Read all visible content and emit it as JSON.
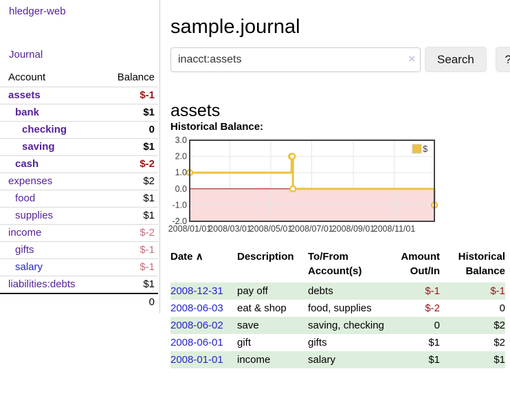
{
  "app": {
    "brand": "hledger-web"
  },
  "sidebar": {
    "journal_link": "Journal",
    "accounts": {
      "header_account": "Account",
      "header_balance": "Balance",
      "rows": [
        {
          "name": "assets",
          "balance": "$-1",
          "level": 1,
          "bold": true,
          "balance_style": "negative"
        },
        {
          "name": "bank",
          "balance": "$1",
          "level": 2,
          "bold": true,
          "balance_style": "normal"
        },
        {
          "name": "checking",
          "balance": "0",
          "level": 3,
          "bold": true,
          "balance_style": "normal"
        },
        {
          "name": "saving",
          "balance": "$1",
          "level": 3,
          "bold": true,
          "balance_style": "normal"
        },
        {
          "name": "cash",
          "balance": "$-2",
          "level": 2,
          "bold": true,
          "balance_style": "negative"
        },
        {
          "name": "expenses",
          "balance": "$2",
          "level": 1,
          "bold": false,
          "balance_style": "normal"
        },
        {
          "name": "food",
          "balance": "$1",
          "level": 2,
          "bold": false,
          "balance_style": "normal"
        },
        {
          "name": "supplies",
          "balance": "$1",
          "level": 2,
          "bold": false,
          "balance_style": "normal"
        },
        {
          "name": "income",
          "balance": "$-2",
          "level": 1,
          "bold": false,
          "balance_style": "negative-soft"
        },
        {
          "name": "gifts",
          "balance": "$-1",
          "level": 2,
          "bold": false,
          "balance_style": "negative-soft"
        },
        {
          "name": "salary",
          "balance": "$-1",
          "level": 2,
          "bold": false,
          "balance_style": "negative-soft",
          "link_style": "blue"
        },
        {
          "name": "liabilities:debts",
          "balance": "$1",
          "level": 1,
          "bold": false,
          "balance_style": "normal"
        }
      ],
      "total": "0"
    }
  },
  "main": {
    "title": "sample.journal",
    "search": {
      "value": "inacct:assets",
      "clear_icon": "×",
      "search_button": "Search",
      "help_button": "?"
    },
    "account_title": "assets",
    "section_label": "Historical Balance:",
    "register": {
      "headers": {
        "date": "Date",
        "sort_icon": "∧",
        "description": "Description",
        "accounts": "To/From\nAccount(s)",
        "amount": "Amount\nOut/In",
        "balance": "Historical\nBalance"
      },
      "rows": [
        {
          "date": "2008-12-31",
          "description": "pay off",
          "accounts": "debts",
          "amount": "$-1",
          "balance": "$-1",
          "amount_negative": true,
          "balance_negative": true
        },
        {
          "date": "2008-06-03",
          "description": "eat & shop",
          "accounts": "food, supplies",
          "amount": "$-2",
          "balance": "0",
          "amount_negative": true,
          "balance_negative": false
        },
        {
          "date": "2008-06-02",
          "description": "save",
          "accounts": "saving, checking",
          "amount": "0",
          "balance": "$2",
          "amount_negative": false,
          "balance_negative": false
        },
        {
          "date": "2008-06-01",
          "description": "gift",
          "accounts": "gifts",
          "amount": "$1",
          "balance": "$2",
          "amount_negative": false,
          "balance_negative": false
        },
        {
          "date": "2008-01-01",
          "description": "income",
          "accounts": "salary",
          "amount": "$1",
          "balance": "$1",
          "amount_negative": false,
          "balance_negative": false
        }
      ]
    }
  },
  "chart_data": {
    "type": "line",
    "step": true,
    "title": "Historical Balance",
    "series": [
      {
        "name": "$",
        "color": "#edc240",
        "points": [
          [
            "2008-01-01",
            1
          ],
          [
            "2008-06-01",
            2
          ],
          [
            "2008-06-02",
            2
          ],
          [
            "2008-06-03",
            0
          ],
          [
            "2008-12-31",
            -1
          ]
        ]
      }
    ],
    "x_ticks": [
      "2008/01/01",
      "2008/03/01",
      "2008/05/01",
      "2008/07/01",
      "2008/09/01",
      "2008/11/01"
    ],
    "y_ticks": [
      "3.0",
      "2.0",
      "1.0",
      "0.0",
      "-1.0",
      "-2.0"
    ],
    "ylim": [
      -2,
      3
    ],
    "xlim": [
      "2008-01-01",
      "2008-12-31"
    ],
    "grid": true,
    "legend_position": "top-right",
    "legend_label": "$",
    "negative_region_color": "#fbdcdc",
    "zero_line_color": "#aa0000",
    "grid_color": "#e6e6e6",
    "border_color": "#454545",
    "tick_label_color": "#3d3d3d"
  },
  "colors": {
    "link_purple": "#55229b",
    "link_blue": "#2525cc",
    "negative": "#9b1515",
    "negative_soft": "#c0707c",
    "row_stripe": "#ddeedd",
    "chart_line": "#edc240"
  }
}
